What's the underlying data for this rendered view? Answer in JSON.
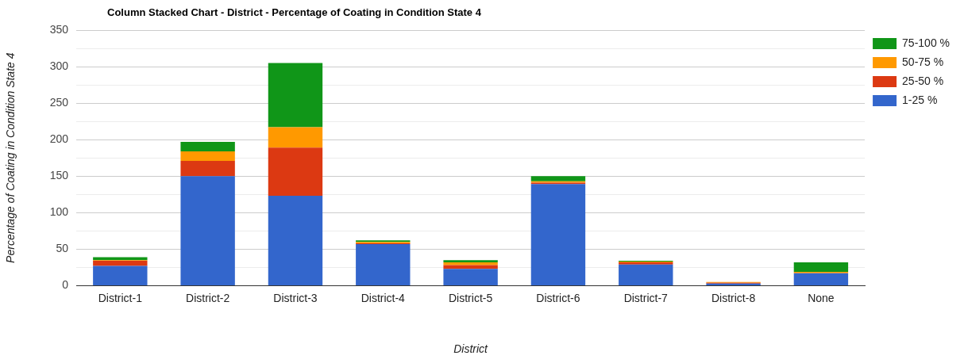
{
  "chart_data": {
    "type": "bar",
    "title": "Column Stacked Chart - District - Percentage of Coating in Condition State 4",
    "xlabel": "District",
    "ylabel": "Percentage of Coating in Condition State 4",
    "categories": [
      "District-1",
      "District-2",
      "District-3",
      "District-4",
      "District-5",
      "District-6",
      "District-7",
      "District-8",
      "None"
    ],
    "series": [
      {
        "name": "1-25 %",
        "color": "#3366cc",
        "values": [
          27,
          150,
          123,
          57,
          23,
          139,
          29,
          3,
          17
        ]
      },
      {
        "name": "25-50 %",
        "color": "#dc3912",
        "values": [
          7,
          21,
          66,
          1,
          5,
          2,
          3,
          1,
          0
        ]
      },
      {
        "name": "50-75 %",
        "color": "#ff9900",
        "values": [
          1,
          13,
          28,
          2,
          4,
          2,
          1,
          1,
          2
        ]
      },
      {
        "name": "75-100 %",
        "color": "#109618",
        "values": [
          4,
          13,
          88,
          2,
          3,
          7,
          1,
          0,
          13
        ]
      }
    ],
    "stacked": true,
    "ylim": [
      0,
      350
    ],
    "yticks": [
      0,
      {
        "value": 25,
        "label": null
      },
      50,
      {
        "value": 75,
        "label": null
      },
      100,
      {
        "value": 125,
        "label": null
      },
      150,
      {
        "value": 175,
        "label": null
      },
      200,
      {
        "value": 225,
        "label": null
      },
      250,
      {
        "value": 275,
        "label": null
      },
      300,
      {
        "value": 325,
        "label": null
      },
      350
    ],
    "grid": "y",
    "legend": "top right"
  }
}
